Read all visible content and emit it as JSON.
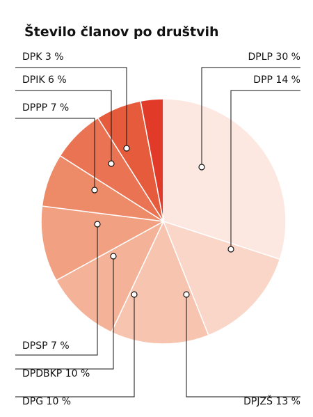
{
  "chart_data": {
    "type": "pie",
    "title": "Število članov po društvih",
    "categories": [
      "DPLP",
      "DPP",
      "DPJZŠ",
      "DPG",
      "DPDBKP",
      "DPSP",
      "DPPP",
      "DPIK",
      "DPK"
    ],
    "values": [
      30,
      14,
      13,
      10,
      10,
      7,
      7,
      6,
      3
    ],
    "value_labels": [
      "30 %",
      "14 %",
      "13 %",
      "10 %",
      "10 %",
      "7 %",
      "7 %",
      "6 %",
      "3 %"
    ],
    "colors": [
      "#fce8e0",
      "#f9d6c8",
      "#f7c4b0",
      "#f4b298",
      "#f1a081",
      "#ed8b69",
      "#e97352",
      "#e55b3c",
      "#e23a28"
    ]
  }
}
